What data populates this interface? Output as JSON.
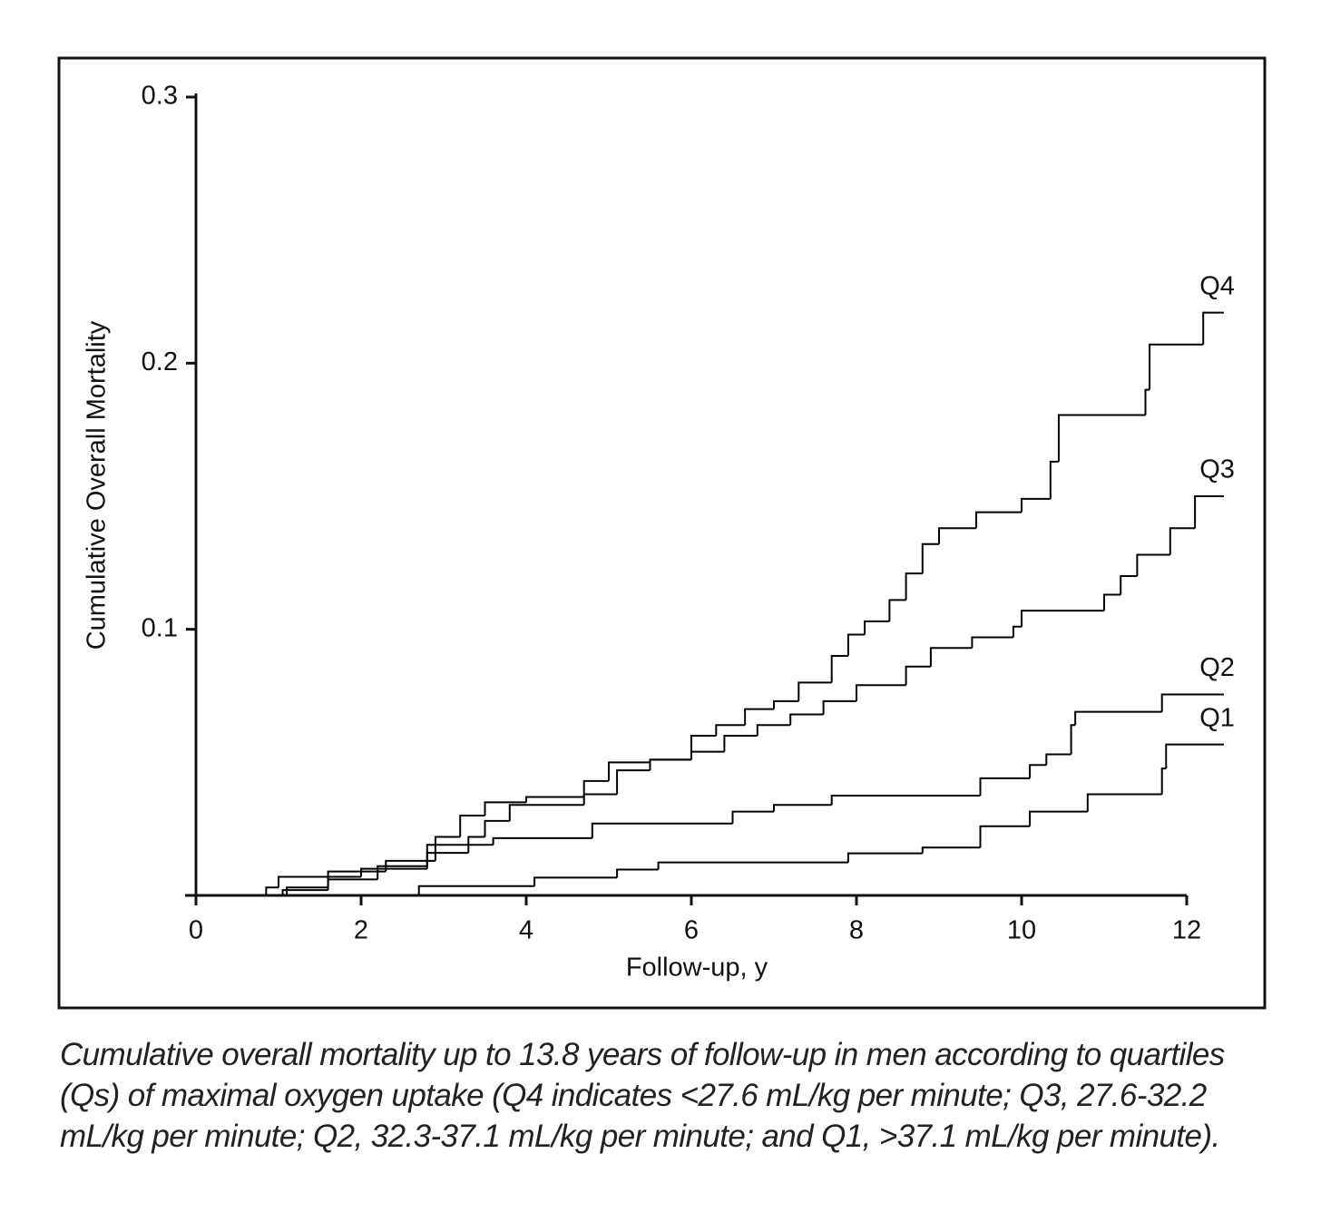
{
  "chart_data": {
    "type": "line",
    "drawstyle": "steps-post",
    "xlabel": "Follow-up, y",
    "ylabel": "Cumulative Overall Mortality",
    "xlim": [
      0,
      12
    ],
    "ylim": [
      0,
      0.3
    ],
    "xticks": [
      0,
      2,
      4,
      6,
      8,
      10,
      12
    ],
    "yticks": [
      0.1,
      0.2,
      0.3
    ],
    "grid": false,
    "series": [
      {
        "name": "Q4",
        "color": "#000000",
        "x": [
          0.85,
          1.0,
          1.6,
          2.3,
          2.9,
          3.2,
          3.5,
          4.0,
          4.7,
          5.0,
          5.5,
          6.0,
          6.3,
          6.65,
          7.0,
          7.3,
          7.7,
          7.9,
          8.1,
          8.4,
          8.6,
          8.8,
          9.0,
          9.45,
          10.0,
          10.35,
          10.45,
          11.5,
          11.55,
          12.2,
          12.45
        ],
        "values": [
          0.003,
          0.007,
          0.009,
          0.013,
          0.022,
          0.03,
          0.035,
          0.037,
          0.043,
          0.05,
          0.051,
          0.06,
          0.064,
          0.07,
          0.073,
          0.08,
          0.09,
          0.098,
          0.103,
          0.111,
          0.121,
          0.132,
          0.138,
          0.144,
          0.149,
          0.163,
          0.1805,
          0.19,
          0.207,
          0.219,
          0.219
        ]
      },
      {
        "name": "Q3",
        "color": "#000000",
        "x": [
          1.05,
          1.6,
          2.0,
          2.8,
          3.3,
          3.5,
          3.8,
          4.7,
          5.1,
          5.5,
          6.0,
          6.4,
          6.8,
          7.2,
          7.6,
          8.0,
          8.6,
          8.9,
          9.4,
          9.9,
          10.0,
          11.0,
          11.2,
          11.4,
          11.8,
          12.1,
          12.45
        ],
        "values": [
          0.002,
          0.007,
          0.01,
          0.019,
          0.022,
          0.028,
          0.034,
          0.038,
          0.047,
          0.051,
          0.054,
          0.06,
          0.064,
          0.068,
          0.073,
          0.079,
          0.086,
          0.093,
          0.097,
          0.101,
          0.107,
          0.113,
          0.12,
          0.128,
          0.138,
          0.15,
          0.15
        ]
      },
      {
        "name": "Q2",
        "color": "#000000",
        "x": [
          1.1,
          1.6,
          2.2,
          2.8,
          3.3,
          3.6,
          4.8,
          6.5,
          7.0,
          7.7,
          9.5,
          10.1,
          10.3,
          10.6,
          10.65,
          11.7,
          12.45
        ],
        "values": [
          0.003,
          0.006,
          0.011,
          0.016,
          0.019,
          0.0215,
          0.027,
          0.0315,
          0.034,
          0.0375,
          0.044,
          0.049,
          0.053,
          0.064,
          0.069,
          0.0755,
          0.0755
        ]
      },
      {
        "name": "Q1",
        "color": "#000000",
        "x": [
          2.7,
          4.1,
          5.1,
          5.6,
          7.9,
          8.8,
          9.5,
          10.1,
          10.8,
          11.7,
          11.75,
          12.45
        ],
        "values": [
          0.0035,
          0.0067,
          0.0097,
          0.0124,
          0.0158,
          0.018,
          0.026,
          0.0315,
          0.038,
          0.0477,
          0.0567,
          0.0567
        ]
      }
    ],
    "caption": "Cumulative overall mortality up to 13.8 years of follow-up in men according to quartiles (Qs) of maximal oxygen uptake (Q4 indicates <27.6 mL/kg per minute; Q3, 27.6-32.2 mL/kg per minute; Q2, 32.3-37.1 mL/kg per minute; and Q1, >37.1 mL/kg per minute)."
  }
}
